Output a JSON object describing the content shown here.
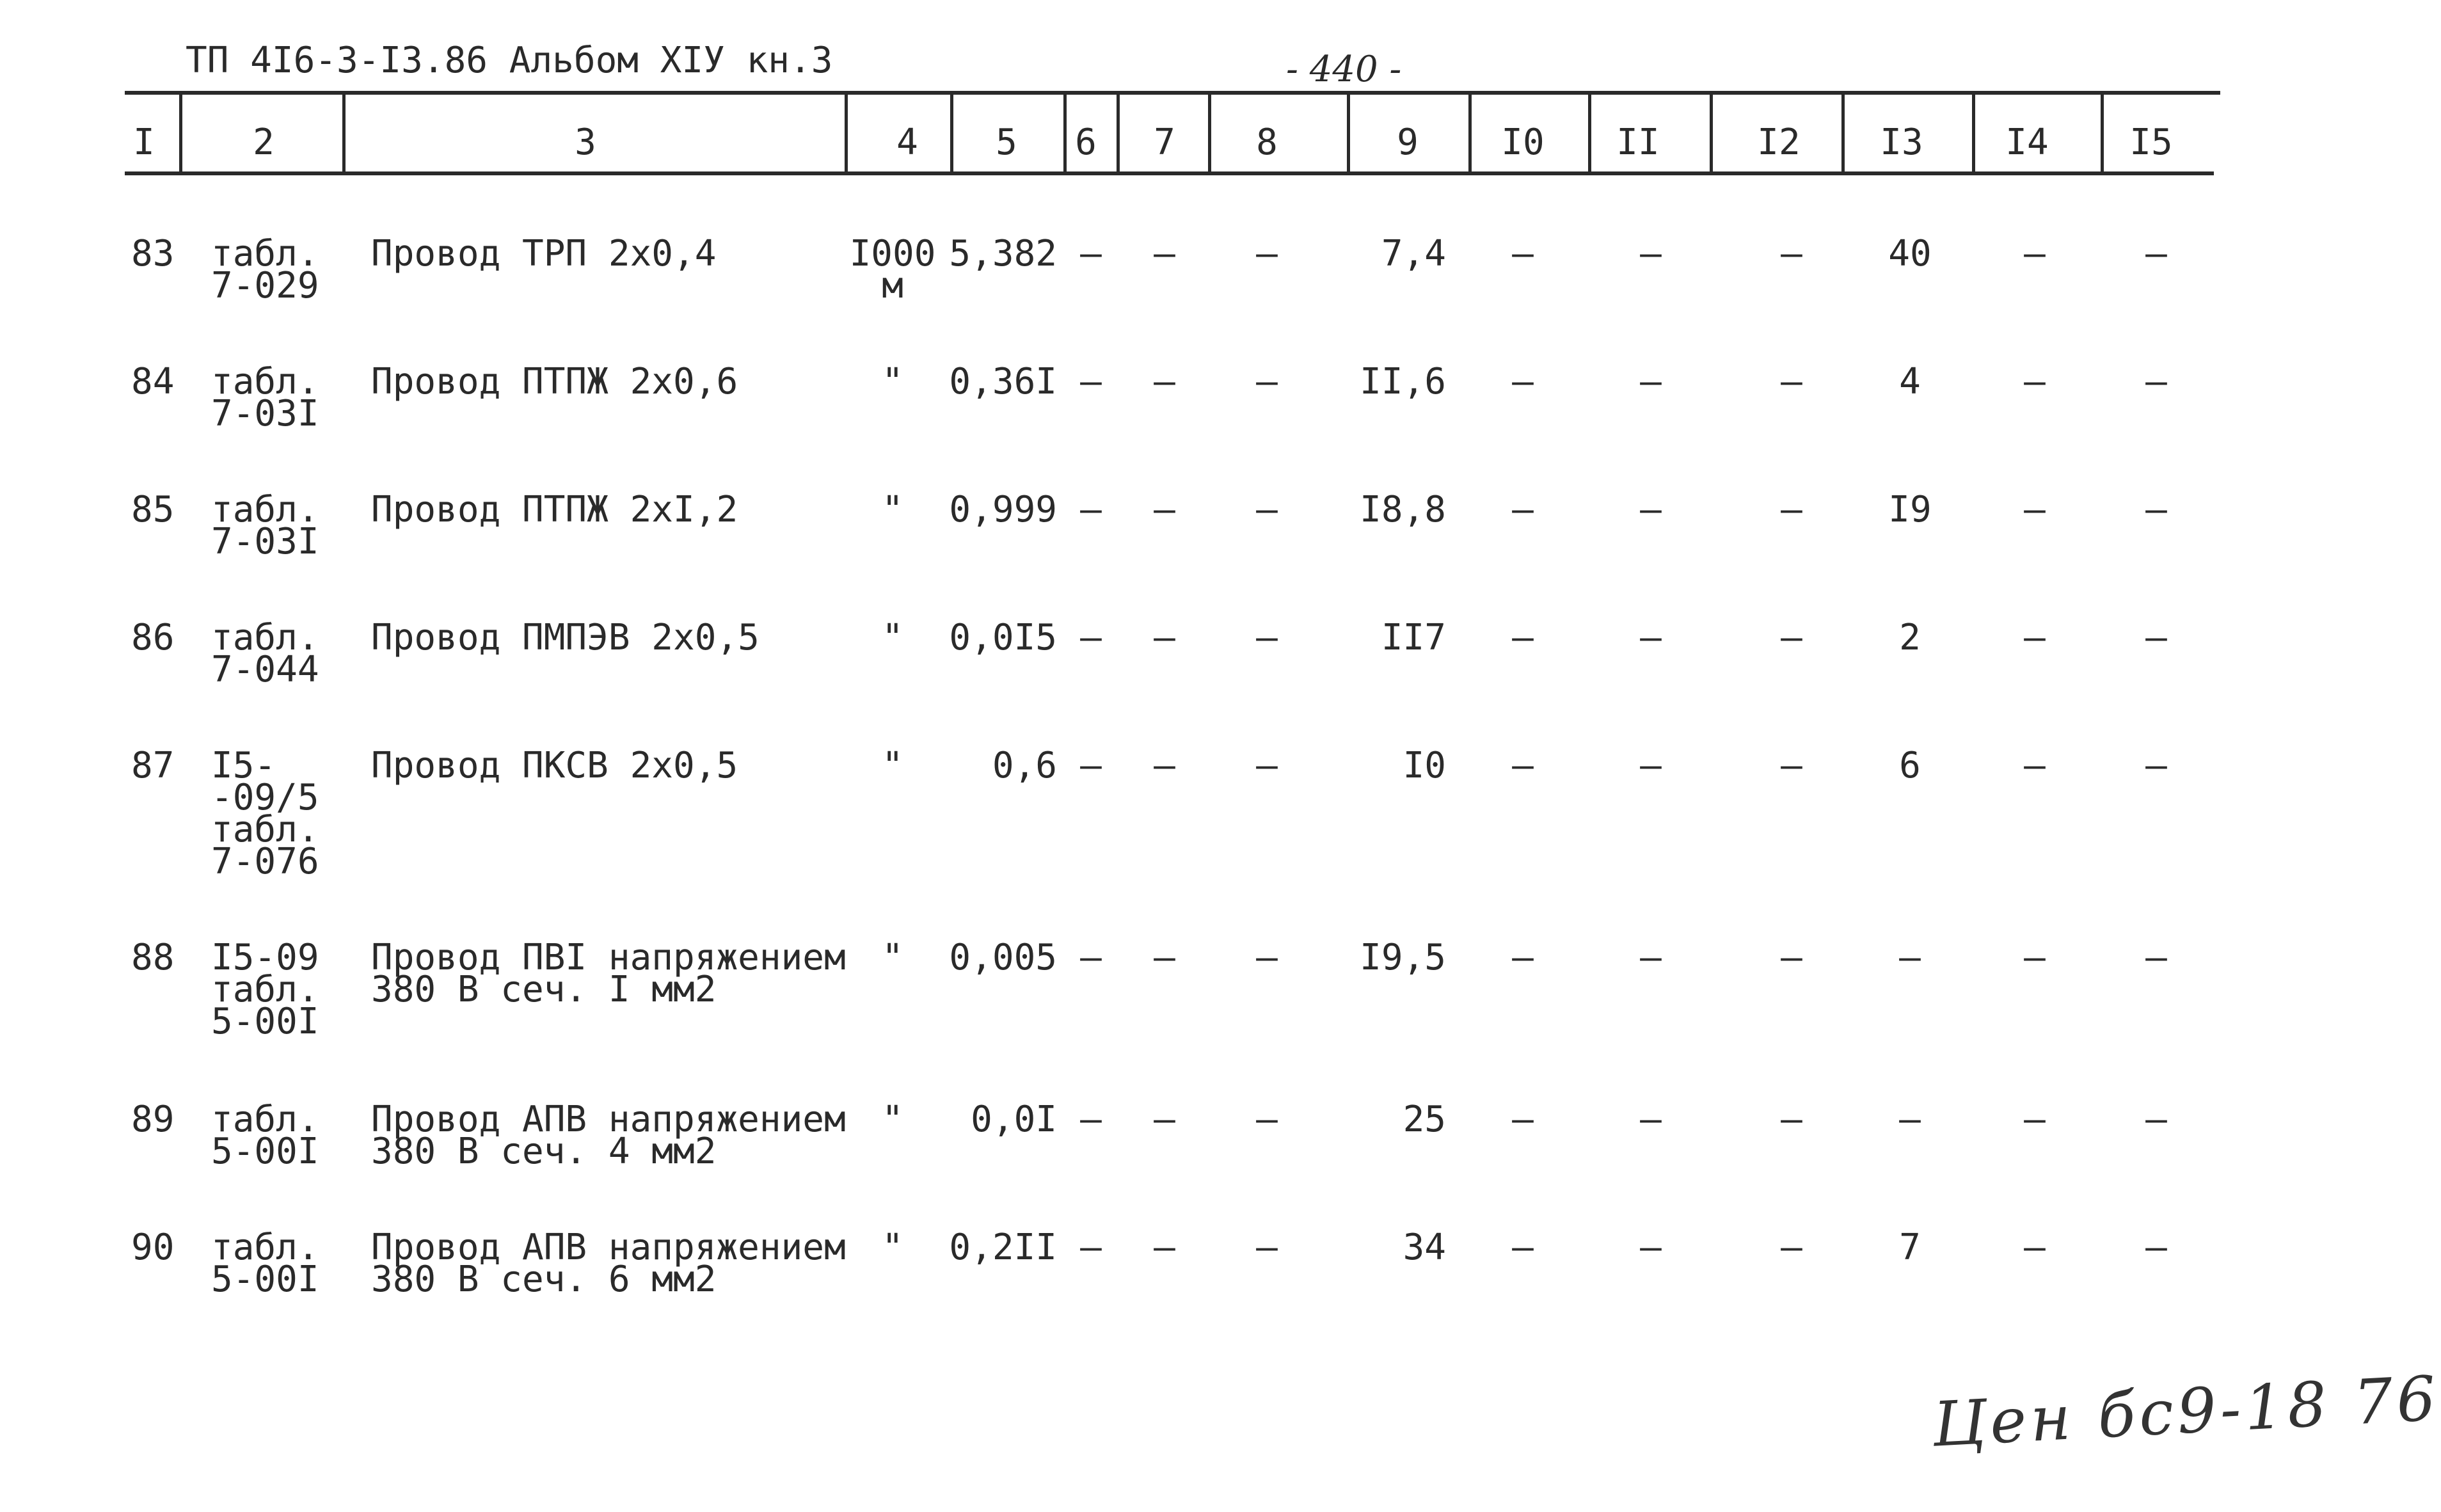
{
  "header": {
    "doc_title": "ТП 4I6-3-I3.86 Альбом XIУ кн.3",
    "page_number": "- 440 -"
  },
  "columns": [
    "I",
    "2",
    "3",
    "4",
    "5",
    "6",
    "7",
    "8",
    "9",
    "I0",
    "II",
    "I2",
    "I3",
    "I4",
    "I5"
  ],
  "rows": [
    {
      "num": "83",
      "source": "табл.\n7-029",
      "name": "Провод ТРП 2х0,4",
      "unit": "I000\nм",
      "c5": "5,382",
      "c6": "–",
      "c7": "–",
      "c8": "–",
      "c9": "7,4",
      "c10": "–",
      "c11": "–",
      "c12": "–",
      "c13": "40",
      "c14": "–",
      "c15": "–"
    },
    {
      "num": "84",
      "source": "табл.\n7-03I",
      "name": "Провод ПТПЖ 2х0,6",
      "unit": "\"",
      "c5": "0,36I",
      "c6": "–",
      "c7": "–",
      "c8": "–",
      "c9": "II,6",
      "c10": "–",
      "c11": "–",
      "c12": "–",
      "c13": "4",
      "c14": "–",
      "c15": "–"
    },
    {
      "num": "85",
      "source": "табл.\n7-03I",
      "name": "Провод ПТПЖ 2хI,2",
      "unit": "\"",
      "c5": "0,999",
      "c6": "–",
      "c7": "–",
      "c8": "–",
      "c9": "I8,8",
      "c10": "–",
      "c11": "–",
      "c12": "–",
      "c13": "I9",
      "c14": "–",
      "c15": "–"
    },
    {
      "num": "86",
      "source": "табл.\n7-044",
      "name": "Провод ПМПЭВ 2х0,5",
      "unit": "\"",
      "c5": "0,0I5",
      "c6": "–",
      "c7": "–",
      "c8": "–",
      "c9": "II7",
      "c10": "–",
      "c11": "–",
      "c12": "–",
      "c13": "2",
      "c14": "–",
      "c15": "–"
    },
    {
      "num": "87",
      "source": "I5-\n-09/5\nтабл.\n7-076",
      "name": "Провод ПКСВ 2х0,5",
      "unit": "\"",
      "c5": "0,6",
      "c6": "–",
      "c7": "–",
      "c8": "–",
      "c9": "I0",
      "c10": "–",
      "c11": "–",
      "c12": "–",
      "c13": "6",
      "c14": "–",
      "c15": "–"
    },
    {
      "num": "88",
      "source": "I5-09\nтабл.\n5-00I",
      "name": "Провод ПВI напряжением\n380 В сеч. I мм2",
      "unit": "\"",
      "c5": "0,005",
      "c6": "–",
      "c7": "–",
      "c8": "–",
      "c9": "I9,5",
      "c10": "–",
      "c11": "–",
      "c12": "–",
      "c13": "–",
      "c14": "–",
      "c15": "–"
    },
    {
      "num": "89",
      "source": "табл.\n5-00I",
      "name": "Провод АПВ напряжением\n380 В сеч. 4 мм2",
      "unit": "\"",
      "c5": "0,0I",
      "c6": "–",
      "c7": "–",
      "c8": "–",
      "c9": "25",
      "c10": "–",
      "c11": "–",
      "c12": "–",
      "c13": "–",
      "c14": "–",
      "c15": "–"
    },
    {
      "num": "90",
      "source": "табл.\n5-00I",
      "name": "Провод АПВ напряжением\n380 В сеч. 6 мм2",
      "unit": "\"",
      "c5": "0,2II",
      "c6": "–",
      "c7": "–",
      "c8": "–",
      "c9": "34",
      "c10": "–",
      "c11": "–",
      "c12": "–",
      "c13": "7",
      "c14": "–",
      "c15": "–"
    }
  ],
  "signature": "Цен бс9-18 76"
}
